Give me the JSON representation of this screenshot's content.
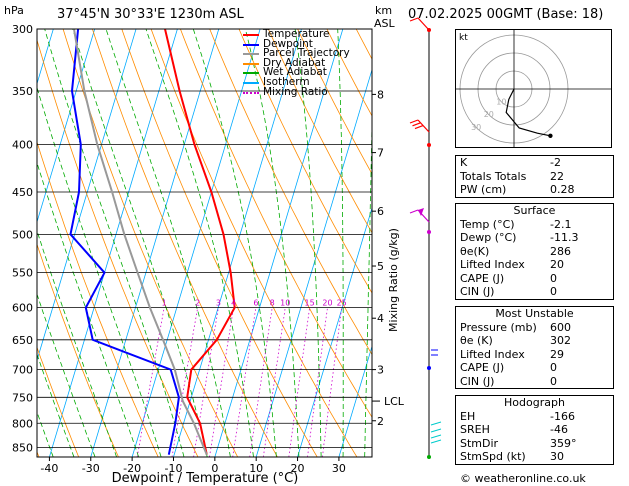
{
  "header": {
    "pressure_unit": "hPa",
    "location": "37°45'N  30°33'E  1230m  ASL",
    "height_unit": "km",
    "height_unit2": "ASL",
    "datetime": "07.02.2025  00GMT  (Base: 18)"
  },
  "axes": {
    "xlabel": "Dewpoint / Temperature (°C)",
    "ylabel_right": "Mixing Ratio (g/kg)",
    "lcl_label": "LCL"
  },
  "colors": {
    "temperature": "#ff0000",
    "dewpoint": "#0000ff",
    "parcel": "#999999",
    "dry_adiabat": "#ff8c00",
    "wet_adiabat": "#00aa00",
    "isotherm": "#00aaff",
    "mixing_ratio": "#cc00cc"
  },
  "legend": [
    {
      "label": "Temperature",
      "color": "#ff0000",
      "style": "solid"
    },
    {
      "label": "Dewpoint",
      "color": "#0000ff",
      "style": "solid"
    },
    {
      "label": "Parcel Trajectory",
      "color": "#999999",
      "style": "solid"
    },
    {
      "label": "Dry Adiabat",
      "color": "#ff8c00",
      "style": "solid"
    },
    {
      "label": "Wet Adiabat",
      "color": "#00aa00",
      "style": "solid"
    },
    {
      "label": "Isotherm",
      "color": "#00aaff",
      "style": "solid"
    },
    {
      "label": "Mixing Ratio",
      "color": "#cc00cc",
      "style": "dotted"
    }
  ],
  "chart_data": {
    "type": "line",
    "pressure_levels": [
      300,
      350,
      400,
      450,
      500,
      550,
      600,
      650,
      700,
      750,
      800,
      850
    ],
    "pressure_range": [
      300,
      870
    ],
    "temperature_ticks": [
      -40,
      -30,
      -20,
      -10,
      0,
      10,
      20,
      30
    ],
    "temperature_range": [
      -43,
      38
    ],
    "height_ticks_km": [
      {
        "km": "8",
        "p": 353
      },
      {
        "km": "7",
        "p": 408
      },
      {
        "km": "6",
        "p": 472
      },
      {
        "km": "5",
        "p": 541
      },
      {
        "km": "4",
        "p": 616
      },
      {
        "km": "3",
        "p": 700
      },
      {
        "km": "2",
        "p": 795
      }
    ],
    "lcl_pressure": 757,
    "mixing_ratio_labels": [
      {
        "label": "1",
        "w": 1
      },
      {
        "label": "2",
        "w": 2
      },
      {
        "label": "3",
        "w": 3
      },
      {
        "label": "4",
        "w": 4
      },
      {
        "label": "6",
        "w": 6
      },
      {
        "label": "8",
        "w": 8
      },
      {
        "label": "10",
        "w": 10
      },
      {
        "label": "15",
        "w": 15
      },
      {
        "label": "20",
        "w": 20
      },
      {
        "label": "25",
        "w": 25
      }
    ],
    "series": [
      {
        "name": "Temperature",
        "p": [
          865,
          800,
          750,
          700,
          650,
          600,
          550,
          500,
          450,
          400,
          350,
          300
        ],
        "t": [
          -2.1,
          -6,
          -11,
          -12,
          -8,
          -6,
          -9.5,
          -14,
          -20,
          -27.5,
          -35,
          -43
        ]
      },
      {
        "name": "Dewpoint",
        "p": [
          865,
          800,
          750,
          700,
          650,
          600,
          550,
          500,
          450,
          400,
          350,
          300
        ],
        "t": [
          -11.3,
          -12,
          -13,
          -17,
          -38,
          -42,
          -40,
          -51,
          -52,
          -55,
          -61,
          -64
        ]
      },
      {
        "name": "Parcel Trajectory",
        "p": [
          865,
          800,
          757,
          700,
          650,
          600,
          550,
          500,
          450,
          400,
          350,
          300
        ],
        "t": [
          -2.1,
          -7.5,
          -11.8,
          -16,
          -21,
          -26.5,
          -32,
          -38,
          -44,
          -51,
          -58,
          -65
        ]
      }
    ]
  },
  "hodograph": {
    "unit_label": "kt",
    "ring_labels": [
      "10",
      "20",
      "30"
    ],
    "points_u_v": [
      [
        0,
        0
      ],
      [
        -2,
        -4
      ],
      [
        -3,
        -9
      ],
      [
        2,
        -15
      ],
      [
        9,
        -17
      ],
      [
        14,
        -18
      ]
    ]
  },
  "indices": {
    "k_label": "K",
    "k_value": "-2",
    "tt_label": "Totals Totals",
    "tt_value": "22",
    "pw_label": "PW (cm)",
    "pw_value": "0.28"
  },
  "surface": {
    "title": "Surface",
    "rows": [
      {
        "label": "Temp (°C)",
        "value": "-2.1"
      },
      {
        "label": "Dewp (°C)",
        "value": "-11.3"
      },
      {
        "label": "θe(K)",
        "value": "286"
      },
      {
        "label": "Lifted Index",
        "value": "20"
      },
      {
        "label": "CAPE (J)",
        "value": "0"
      },
      {
        "label": "CIN (J)",
        "value": "0"
      }
    ]
  },
  "most_unstable": {
    "title": "Most Unstable",
    "rows": [
      {
        "label": "Pressure (mb)",
        "value": "600"
      },
      {
        "label": "θe (K)",
        "value": "302"
      },
      {
        "label": "Lifted Index",
        "value": "29"
      },
      {
        "label": "CAPE (J)",
        "value": "0"
      },
      {
        "label": "CIN (J)",
        "value": "0"
      }
    ]
  },
  "hodograph_table": {
    "title": "Hodograph",
    "rows": [
      {
        "label": "EH",
        "value": "-166"
      },
      {
        "label": "SREH",
        "value": "-46"
      },
      {
        "label": "StmDir",
        "value": "359°"
      },
      {
        "label": "StmSpd (kt)",
        "value": "30"
      }
    ]
  },
  "footer": {
    "copyright": "© weatheronline.co.uk"
  }
}
